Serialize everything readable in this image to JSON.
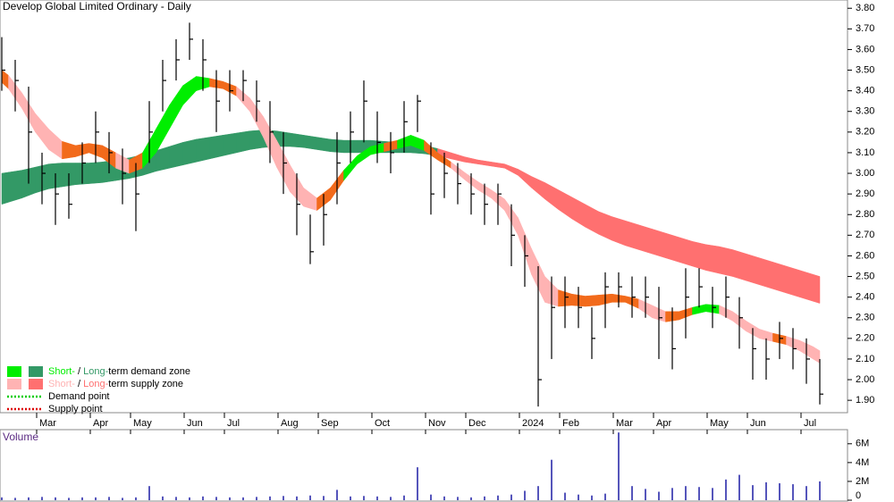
{
  "chart_data": {
    "type": "candlestick",
    "title": "Develop Global Limited Ordinary - Daily",
    "ylim": [
      1.84,
      3.84
    ],
    "yticks": [
      {
        "value": 3.8,
        "label": "3.80"
      },
      {
        "value": 3.7,
        "label": "3.70"
      },
      {
        "value": 3.6,
        "label": "3.60"
      },
      {
        "value": 3.5,
        "label": "3.50"
      },
      {
        "value": 3.4,
        "label": "3.40"
      },
      {
        "value": 3.3,
        "label": "3.30"
      },
      {
        "value": 3.2,
        "label": "3.20"
      },
      {
        "value": 3.1,
        "label": "3.10"
      },
      {
        "value": 3.0,
        "label": "3.00"
      },
      {
        "value": 2.9,
        "label": "2.90"
      },
      {
        "value": 2.8,
        "label": "2.80"
      },
      {
        "value": 2.7,
        "label": "2.70"
      },
      {
        "value": 2.6,
        "label": "2.60"
      },
      {
        "value": 2.5,
        "label": "2.50"
      },
      {
        "value": 2.4,
        "label": "2.40"
      },
      {
        "value": 2.3,
        "label": "2.30"
      },
      {
        "value": 2.2,
        "label": "2.20"
      },
      {
        "value": 2.1,
        "label": "2.10"
      },
      {
        "value": 2.0,
        "label": "2.00"
      },
      {
        "value": 1.9,
        "label": "1.90"
      }
    ],
    "xticks": [
      {
        "value": 3,
        "label": "Mar"
      },
      {
        "value": 7,
        "label": "Apr"
      },
      {
        "value": 10,
        "label": "May"
      },
      {
        "value": 14,
        "label": "Jun"
      },
      {
        "value": 17,
        "label": "Jul"
      },
      {
        "value": 21,
        "label": "Aug"
      },
      {
        "value": 24,
        "label": "Sep"
      },
      {
        "value": 28,
        "label": "Oct"
      },
      {
        "value": 32,
        "label": "Nov"
      },
      {
        "value": 35,
        "label": "Dec"
      },
      {
        "value": 39,
        "label": "2024"
      },
      {
        "value": 42,
        "label": "Feb"
      },
      {
        "value": 46,
        "label": "Mar"
      },
      {
        "value": 49,
        "label": "Apr"
      },
      {
        "value": 53,
        "label": "May"
      },
      {
        "value": 56,
        "label": "Jun"
      },
      {
        "value": 60,
        "label": "Jul"
      }
    ],
    "candle_color": "#000000",
    "high": [
      3.66,
      3.55,
      3.42,
      3.1,
      3.0,
      3.0,
      3.15,
      3.3,
      3.2,
      3.12,
      3.05,
      3.35,
      3.55,
      3.65,
      3.73,
      3.65,
      3.5,
      3.5,
      3.5,
      3.45,
      3.35,
      3.2,
      3.0,
      2.8,
      2.9,
      3.2,
      3.3,
      3.45,
      3.3,
      3.2,
      3.35,
      3.38,
      3.15,
      3.1,
      3.05,
      3.0,
      2.95,
      2.95,
      2.85,
      2.7,
      2.55,
      2.5,
      2.5,
      2.45,
      2.35,
      2.52,
      2.52,
      2.5,
      2.5,
      2.45,
      2.35,
      2.54,
      2.54,
      2.45,
      2.5,
      2.4,
      2.25,
      2.2,
      2.28,
      2.25,
      2.2,
      2.1
    ],
    "low": [
      3.4,
      3.3,
      2.95,
      2.85,
      2.75,
      2.78,
      2.95,
      3.05,
      3.0,
      2.85,
      2.72,
      3.05,
      3.3,
      3.45,
      3.55,
      3.4,
      3.2,
      3.3,
      3.35,
      3.25,
      3.05,
      2.9,
      2.7,
      2.56,
      2.65,
      2.85,
      3.05,
      3.15,
      3.05,
      3.0,
      3.1,
      3.2,
      2.8,
      2.88,
      2.85,
      2.8,
      2.75,
      2.75,
      2.55,
      2.45,
      1.87,
      2.1,
      2.25,
      2.25,
      2.1,
      2.25,
      2.35,
      2.3,
      2.3,
      2.1,
      2.05,
      2.2,
      2.35,
      2.25,
      2.3,
      2.15,
      2.0,
      2.0,
      2.1,
      2.05,
      1.98,
      1.88
    ],
    "close": [
      3.5,
      3.45,
      3.2,
      3.0,
      2.9,
      2.85,
      3.05,
      3.2,
      3.1,
      3.0,
      2.9,
      3.2,
      3.45,
      3.55,
      3.65,
      3.55,
      3.35,
      3.4,
      3.45,
      3.35,
      3.2,
      3.05,
      2.85,
      2.62,
      2.8,
      3.05,
      3.2,
      3.35,
      3.15,
      3.1,
      3.25,
      3.35,
      2.9,
      3.0,
      2.95,
      2.9,
      2.85,
      2.9,
      2.7,
      2.6,
      2.0,
      2.35,
      2.4,
      2.35,
      2.2,
      2.45,
      2.45,
      2.4,
      2.4,
      2.3,
      2.15,
      2.4,
      2.45,
      2.35,
      2.4,
      2.3,
      2.15,
      2.1,
      2.2,
      2.15,
      2.1,
      1.93
    ],
    "long_zone": {
      "upper": [
        3.0,
        3.01,
        3.02,
        3.04,
        3.05,
        3.05,
        3.05,
        3.05,
        3.06,
        3.07,
        3.08,
        3.1,
        3.12,
        3.14,
        3.16,
        3.17,
        3.18,
        3.19,
        3.2,
        3.21,
        3.21,
        3.2,
        3.19,
        3.18,
        3.17,
        3.16,
        3.16,
        3.16,
        3.16,
        3.15,
        3.15,
        3.14,
        3.13,
        3.11,
        3.09,
        3.07,
        3.06,
        3.05,
        3.04,
        3.0,
        2.97,
        2.94,
        2.9,
        2.87,
        2.83,
        2.8,
        2.78,
        2.76,
        2.74,
        2.72,
        2.7,
        2.68,
        2.66,
        2.65,
        2.64,
        2.62,
        2.6,
        2.58,
        2.56,
        2.54,
        2.52,
        2.5
      ],
      "lower": [
        2.85,
        2.87,
        2.89,
        2.92,
        2.93,
        2.94,
        2.95,
        2.95,
        2.96,
        2.97,
        2.98,
        3.0,
        3.02,
        3.03,
        3.05,
        3.06,
        3.08,
        3.09,
        3.11,
        3.12,
        3.13,
        3.13,
        3.13,
        3.12,
        3.11,
        3.1,
        3.1,
        3.1,
        3.1,
        3.1,
        3.1,
        3.1,
        3.09,
        3.08,
        3.06,
        3.05,
        3.04,
        3.03,
        3.02,
        2.96,
        2.9,
        2.85,
        2.8,
        2.76,
        2.72,
        2.69,
        2.66,
        2.64,
        2.62,
        2.6,
        2.58,
        2.56,
        2.54,
        2.52,
        2.51,
        2.49,
        2.47,
        2.45,
        2.43,
        2.41,
        2.39,
        2.37
      ],
      "colors": [
        "#339966",
        "#339966",
        "#339966",
        "#339966",
        "#339966",
        "#339966",
        "#339966",
        "#339966",
        "#339966",
        "#339966",
        "#339966",
        "#339966",
        "#339966",
        "#339966",
        "#339966",
        "#339966",
        "#339966",
        "#339966",
        "#339966",
        "#339966",
        "#339966",
        "#339966",
        "#339966",
        "#339966",
        "#339966",
        "#339966",
        "#339966",
        "#339966",
        "#339966",
        "#339966",
        "#339966",
        "#339966",
        "#339966",
        "#ff7070",
        "#ff7070",
        "#ff7070",
        "#ff7070",
        "#ff7070",
        "#ff7070",
        "#ff7070",
        "#ff7070",
        "#ff7070",
        "#ff7070",
        "#ff7070",
        "#ff7070",
        "#ff7070",
        "#ff7070",
        "#ff7070",
        "#ff7070",
        "#ff7070",
        "#ff7070",
        "#ff7070",
        "#ff7070",
        "#ff7070",
        "#ff7070",
        "#ff7070",
        "#ff7070",
        "#ff7070",
        "#ff7070",
        "#ff7070",
        "#ff7070",
        "#ff7070"
      ]
    },
    "short_zone": {
      "upper": [
        3.5,
        3.45,
        3.33,
        3.25,
        3.18,
        3.13,
        3.14,
        3.15,
        3.12,
        3.08,
        3.05,
        3.15,
        3.28,
        3.38,
        3.47,
        3.47,
        3.45,
        3.44,
        3.4,
        3.33,
        3.22,
        3.1,
        2.98,
        2.88,
        2.88,
        2.98,
        3.05,
        3.12,
        3.14,
        3.15,
        3.17,
        3.2,
        3.12,
        3.08,
        3.03,
        2.98,
        2.94,
        2.9,
        2.85,
        2.72,
        2.55,
        2.45,
        2.42,
        2.41,
        2.4,
        2.42,
        2.41,
        2.4,
        2.38,
        2.34,
        2.32,
        2.34,
        2.36,
        2.37,
        2.35,
        2.31,
        2.26,
        2.23,
        2.22,
        2.2,
        2.18,
        2.14
      ],
      "lower": [
        3.44,
        3.38,
        3.25,
        3.15,
        3.08,
        3.06,
        3.1,
        3.1,
        3.05,
        3.0,
        3.0,
        3.05,
        3.15,
        3.28,
        3.38,
        3.42,
        3.42,
        3.4,
        3.35,
        3.25,
        3.1,
        2.96,
        2.86,
        2.82,
        2.82,
        2.92,
        3.01,
        3.08,
        3.1,
        3.11,
        3.13,
        3.14,
        3.08,
        3.05,
        3.0,
        2.94,
        2.9,
        2.86,
        2.78,
        2.62,
        2.4,
        2.35,
        2.36,
        2.36,
        2.35,
        2.37,
        2.38,
        2.37,
        2.32,
        2.28,
        2.28,
        2.3,
        2.33,
        2.33,
        2.31,
        2.26,
        2.21,
        2.19,
        2.18,
        2.16,
        2.12,
        2.08
      ],
      "colors": [
        "#f26a1b",
        "#ffb3b3",
        "#ffb3b3",
        "#ffb3b3",
        "#ffb3b3",
        "#f26a1b",
        "#f26a1b",
        "#f26a1b",
        "#f26a1b",
        "#ffb3b3",
        "#f26a1b",
        "#00ee00",
        "#00ee00",
        "#00ee00",
        "#00ee00",
        "#00ee00",
        "#f26a1b",
        "#f26a1b",
        "#ffb3b3",
        "#ffb3b3",
        "#ffb3b3",
        "#ffb3b3",
        "#ffb3b3",
        "#ffb3b3",
        "#f26a1b",
        "#f26a1b",
        "#00ee00",
        "#00ee00",
        "#00ee00",
        "#f26a1b",
        "#00ee00",
        "#00ee00",
        "#f26a1b",
        "#f26a1b",
        "#ffb3b3",
        "#ffb3b3",
        "#ffb3b3",
        "#ffb3b3",
        "#ffb3b3",
        "#ffb3b3",
        "#ffb3b3",
        "#ffb3b3",
        "#f26a1b",
        "#f26a1b",
        "#f26a1b",
        "#f26a1b",
        "#f26a1b",
        "#f26a1b",
        "#ffb3b3",
        "#ffb3b3",
        "#f26a1b",
        "#f26a1b",
        "#00ee00",
        "#00ee00",
        "#ffb3b3",
        "#ffb3b3",
        "#ffb3b3",
        "#ffb3b3",
        "#f26a1b",
        "#ffb3b3",
        "#ffb3b3",
        "#ffb3b3"
      ]
    },
    "volume": {
      "title": "Volume",
      "color": "#5555bb",
      "ylim": [
        0,
        7500000
      ],
      "yticks": [
        {
          "value": 6000000,
          "label": "6M"
        },
        {
          "value": 4000000,
          "label": "4M"
        },
        {
          "value": 2000000,
          "label": "2M"
        },
        0
      ],
      "values": [
        300000,
        250000,
        300000,
        350000,
        300000,
        250000,
        300000,
        300000,
        350000,
        250000,
        300000,
        1500000,
        400000,
        350000,
        300000,
        400000,
        350000,
        300000,
        300000,
        350000,
        400000,
        450000,
        400000,
        500000,
        450000,
        1100000,
        400000,
        450000,
        400000,
        350000,
        500000,
        3500000,
        600000,
        400000,
        350000,
        300000,
        400000,
        500000,
        600000,
        1000000,
        1500000,
        4300000,
        800000,
        600000,
        500000,
        700000,
        7200000,
        1500000,
        1200000,
        900000,
        1300000,
        1500000,
        1400000,
        1300000,
        2200000,
        2700000,
        1600000,
        1900000,
        1800000,
        1700000,
        1500000,
        2000000
      ]
    },
    "legend": [
      {
        "parts": [
          "Short-",
          " / ",
          "Long-",
          "term demand zone"
        ],
        "colors": [
          "#00ee00",
          "#339966"
        ]
      },
      {
        "parts": [
          "Short-",
          " / ",
          "Long-",
          "term supply zone"
        ],
        "colors": [
          "#ffb3b3",
          "#ff7070"
        ]
      },
      {
        "parts": [
          "Demand point"
        ],
        "colors": [
          "#00cc00"
        ]
      },
      {
        "parts": [
          "Supply point"
        ],
        "colors": [
          "#dd0000"
        ]
      }
    ]
  }
}
